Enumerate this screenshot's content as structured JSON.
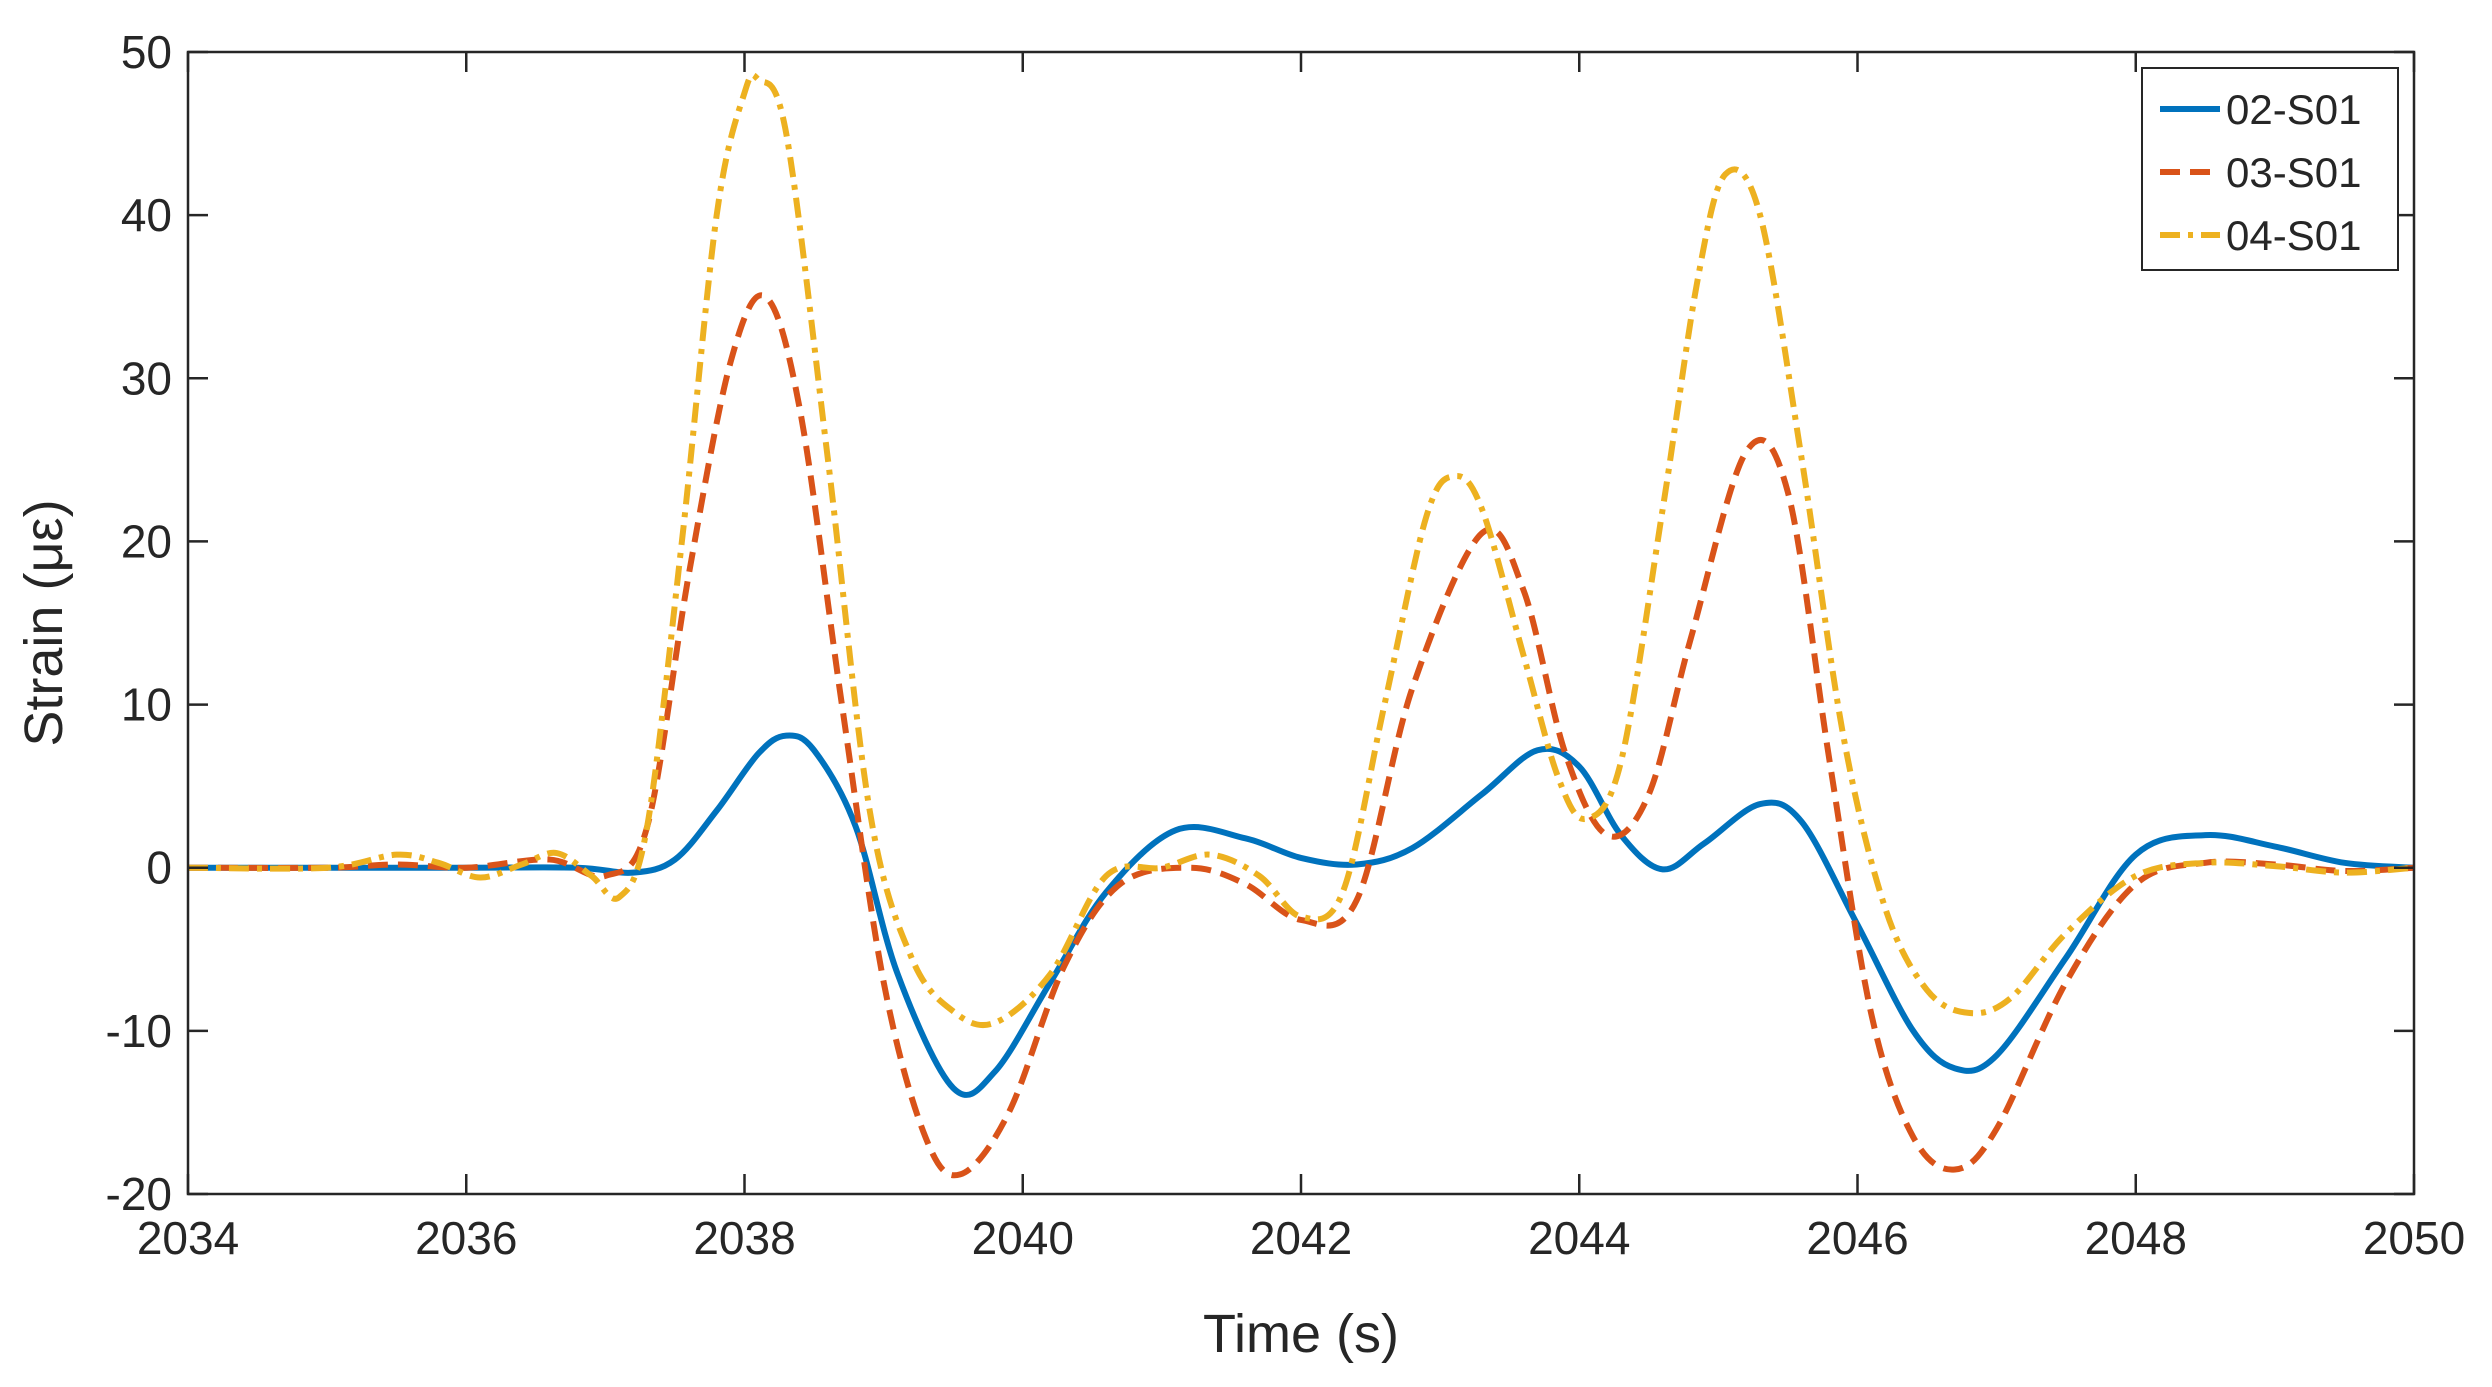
{
  "chart_data": {
    "type": "line",
    "title": "",
    "xlabel": "Time (s)",
    "ylabel": "Strain (με)",
    "xlim": [
      2034,
      2050
    ],
    "ylim": [
      -20,
      50
    ],
    "xticks": [
      2034,
      2036,
      2038,
      2040,
      2042,
      2044,
      2046,
      2048,
      2050
    ],
    "yticks": [
      -20,
      -10,
      0,
      10,
      20,
      30,
      40,
      50
    ],
    "grid": false,
    "legend_position": "top-right",
    "series": [
      {
        "name": "02-S01",
        "color": "#0072BD",
        "line_style": "solid",
        "x": [
          2034,
          2035,
          2036,
          2036.8,
          2037.2,
          2037.5,
          2037.8,
          2038.1,
          2038.3,
          2038.5,
          2038.8,
          2039.1,
          2039.5,
          2039.8,
          2040.2,
          2040.6,
          2041.1,
          2041.6,
          2042.0,
          2042.4,
          2042.8,
          2043.3,
          2043.7,
          2044.0,
          2044.3,
          2044.6,
          2044.9,
          2045.3,
          2045.6,
          2046.0,
          2046.4,
          2046.7,
          2047.0,
          2047.5,
          2048.0,
          2048.5,
          2049.0,
          2049.5,
          2050
        ],
        "y": [
          0,
          0,
          0,
          0,
          -0.3,
          0.5,
          3.5,
          7.0,
          8.1,
          7.2,
          2.5,
          -6.5,
          -13.5,
          -12.5,
          -7.0,
          -1.5,
          2.3,
          1.8,
          0.6,
          0.2,
          1.2,
          4.5,
          7.2,
          6.2,
          2.0,
          -0.1,
          1.5,
          3.9,
          2.8,
          -3.5,
          -10.0,
          -12.3,
          -11.5,
          -5.5,
          0.8,
          2.0,
          1.3,
          0.3,
          0
        ]
      },
      {
        "name": "03-S01",
        "color": "#D95319",
        "line_style": "dashed",
        "x": [
          2034,
          2035,
          2035.5,
          2036.0,
          2036.6,
          2037.0,
          2037.3,
          2037.6,
          2037.9,
          2038.15,
          2038.4,
          2038.7,
          2039.0,
          2039.3,
          2039.55,
          2039.9,
          2040.3,
          2040.7,
          2041.2,
          2041.6,
          2042.0,
          2042.4,
          2042.8,
          2043.3,
          2043.6,
          2043.9,
          2044.2,
          2044.5,
          2044.8,
          2045.2,
          2045.5,
          2045.8,
          2046.1,
          2046.4,
          2046.7,
          2047.0,
          2047.5,
          2048.0,
          2048.5,
          2049.0,
          2049.5,
          2050
        ],
        "y": [
          0,
          0,
          0.2,
          0,
          0.5,
          -0.5,
          2.5,
          18.0,
          31.0,
          35.0,
          28.0,
          10.0,
          -7.0,
          -16.5,
          -18.8,
          -15.0,
          -6.0,
          -1.0,
          0,
          -1.0,
          -3.2,
          -2.0,
          11.0,
          20.5,
          17.0,
          7.0,
          2.0,
          4.5,
          14.0,
          25.5,
          23.0,
          6.5,
          -9.0,
          -16.5,
          -18.5,
          -16.0,
          -7.0,
          -1.0,
          0.3,
          0.2,
          -0.2,
          0
        ]
      },
      {
        "name": "04-S01",
        "color": "#EDB120",
        "line_style": "dashdot",
        "x": [
          2034,
          2035,
          2035.5,
          2035.8,
          2036.1,
          2036.4,
          2036.65,
          2036.9,
          2037.1,
          2037.3,
          2037.55,
          2037.8,
          2038.0,
          2038.1,
          2038.3,
          2038.6,
          2038.9,
          2039.2,
          2039.5,
          2039.8,
          2040.2,
          2040.6,
          2041.0,
          2041.35,
          2041.7,
          2042.0,
          2042.3,
          2042.6,
          2042.9,
          2043.1,
          2043.3,
          2043.6,
          2043.85,
          2044.05,
          2044.3,
          2044.6,
          2044.85,
          2045.05,
          2045.3,
          2045.6,
          2045.9,
          2046.2,
          2046.5,
          2046.8,
          2047.1,
          2047.5,
          2048.0,
          2048.5,
          2049.0,
          2049.5,
          2050
        ],
        "y": [
          0,
          0,
          0.8,
          0.3,
          -0.6,
          0.2,
          0.9,
          -0.5,
          -1.8,
          2.5,
          20.0,
          40.0,
          47.5,
          48.3,
          45.0,
          25.0,
          3.5,
          -5.5,
          -8.8,
          -9.5,
          -6.5,
          -0.5,
          0,
          0.8,
          -0.5,
          -3.0,
          -1.5,
          10.0,
          21.5,
          24.0,
          22.0,
          13.0,
          5.5,
          3.0,
          6.5,
          22.0,
          36.0,
          42.5,
          40.0,
          25.0,
          8.0,
          -2.5,
          -7.5,
          -8.9,
          -8.0,
          -4.0,
          -0.5,
          0.3,
          0.1,
          -0.3,
          0
        ]
      }
    ]
  }
}
